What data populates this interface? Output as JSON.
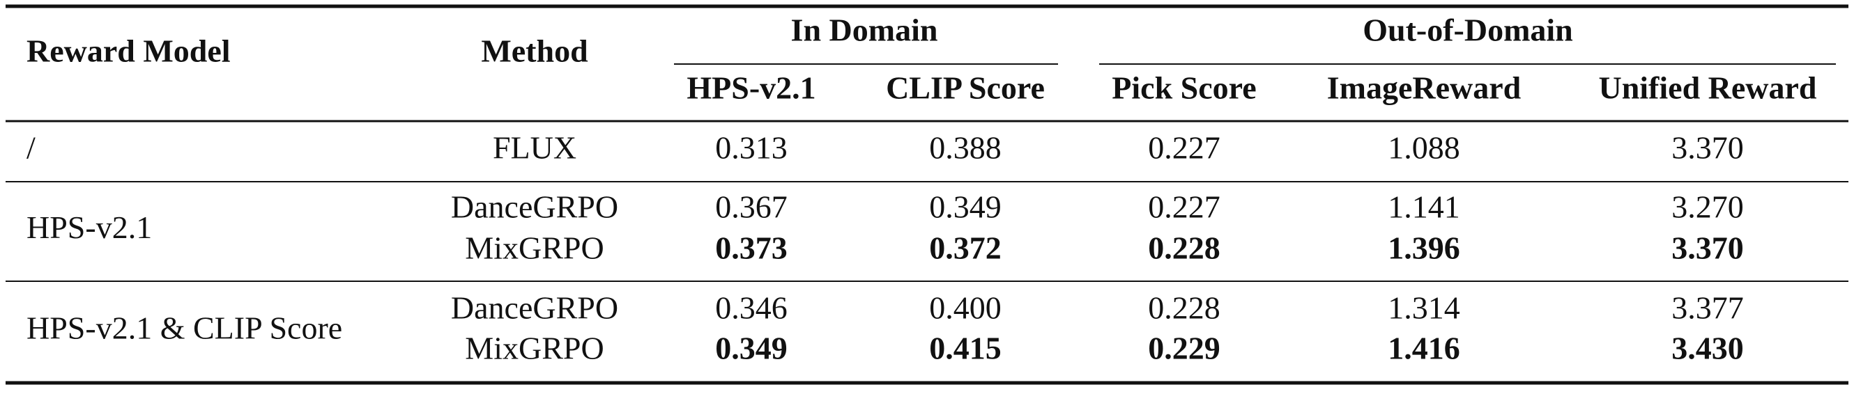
{
  "header": {
    "groups": [
      "In Domain",
      "Out-of-Domain"
    ],
    "columns": [
      "Reward Model",
      "Method",
      "HPS-v2.1",
      "CLIP Score",
      "Pick Score",
      "ImageReward",
      "Unified Reward"
    ]
  },
  "table": {
    "groups": [
      {
        "reward_model": "/",
        "rows": [
          {
            "method": "FLUX",
            "values": [
              "0.313",
              "0.388",
              "0.227",
              "1.088",
              "3.370"
            ],
            "bold": false
          }
        ]
      },
      {
        "reward_model": "HPS-v2.1",
        "rows": [
          {
            "method": "DanceGRPO",
            "values": [
              "0.367",
              "0.349",
              "0.227",
              "1.141",
              "3.270"
            ],
            "bold": false
          },
          {
            "method": "MixGRPO",
            "values": [
              "0.373",
              "0.372",
              "0.228",
              "1.396",
              "3.370"
            ],
            "bold": true
          }
        ]
      },
      {
        "reward_model": "HPS-v2.1 & CLIP Score",
        "rows": [
          {
            "method": "DanceGRPO",
            "values": [
              "0.346",
              "0.400",
              "0.228",
              "1.314",
              "3.377"
            ],
            "bold": false
          },
          {
            "method": "MixGRPO",
            "values": [
              "0.349",
              "0.415",
              "0.229",
              "1.416",
              "3.430"
            ],
            "bold": true
          }
        ]
      }
    ]
  }
}
